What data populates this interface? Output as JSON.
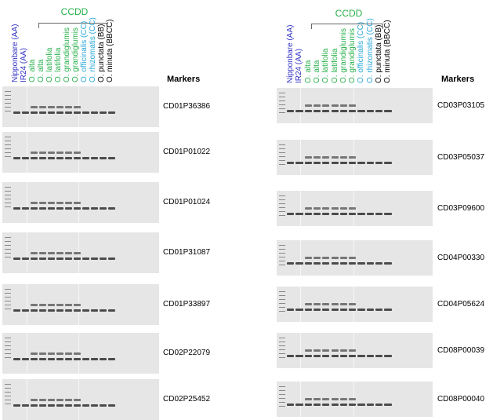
{
  "lanes": [
    {
      "label": "Nipponbare (AA)",
      "color": "#2f2fc4"
    },
    {
      "label": "IR24 (AA)",
      "color": "#2f2fc4"
    },
    {
      "label": "O. alta",
      "color": "#27b04a"
    },
    {
      "label": "O. alta",
      "color": "#27b04a"
    },
    {
      "label": "O. latifolia",
      "color": "#27b04a"
    },
    {
      "label": "O. latifolia",
      "color": "#27b04a"
    },
    {
      "label": "O. grandiglumis",
      "color": "#27b04a"
    },
    {
      "label": "O. grandiglumis",
      "color": "#27b04a"
    },
    {
      "label": "O. officinalis (CC)",
      "color": "#29a8d8"
    },
    {
      "label": "O. rhizomatis (CC)",
      "color": "#29a8d8"
    },
    {
      "label": "O. punctata (BB)",
      "color": "#000000"
    },
    {
      "label": "O. minuta (BBCC)",
      "color": "#000000"
    }
  ],
  "group_label": "CCDD",
  "markers_title": "Markers",
  "left_markers": [
    "CD01P36386",
    "CD01P01022",
    "CD01P01024",
    "CD01P31087",
    "CD01P33897",
    "CD02P22079",
    "CD02P25452"
  ],
  "right_markers": [
    "CD03P03105",
    "CD03P05037",
    "CD03P09600",
    "CD04P00330",
    "CD04P05624",
    "CD08P00039",
    "CD08P00040"
  ],
  "colors": {
    "gel": "#e6e6e6",
    "band": "#3a3a3a",
    "ccdd": "#27b04a"
  }
}
